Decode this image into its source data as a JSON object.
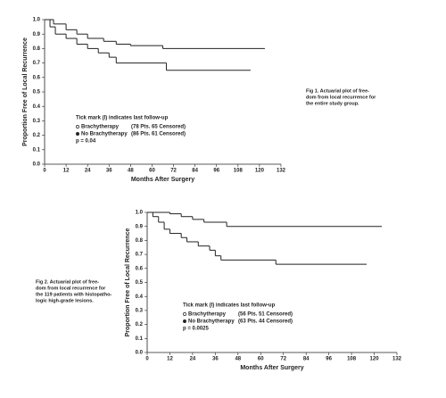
{
  "chart_data": [
    {
      "type": "line",
      "step": true,
      "x_label": "Months After Surgery",
      "y_label": "Proportion Free of Local Recurrence",
      "legend_title": "Tick mark (I) indicates last follow-up",
      "p_value": "p = 0.04",
      "caption": [
        "Fig 1.  Actuarial plot of free-",
        "dom from local recurrence for",
        "the entire study group."
      ],
      "xlim": [
        0,
        132
      ],
      "ylim": [
        0,
        1
      ],
      "xticks": [
        0,
        12,
        24,
        36,
        48,
        60,
        72,
        84,
        96,
        108,
        120,
        132
      ],
      "yticks": [
        {
          "value": 0,
          "label": "0.0"
        },
        0.1,
        0.2,
        0.3,
        0.4,
        0.5,
        0.6,
        0.7,
        0.8,
        0.9,
        {
          "value": 1,
          "label": "1.0"
        }
      ],
      "series": [
        {
          "name": "Brachytherapy",
          "note": "(78 Pts. 65 Censored)",
          "marker": "open",
          "color": "#222",
          "x": [
            0,
            5,
            12,
            18,
            24,
            33,
            40,
            48,
            66,
            123
          ],
          "values": [
            1,
            0.97,
            0.93,
            0.9,
            0.87,
            0.85,
            0.83,
            0.82,
            0.8,
            0.8
          ]
        },
        {
          "name": "No Brachytherapy",
          "note": "(86 Pts. 61 Censored)",
          "marker": "filled",
          "color": "#222",
          "x": [
            0,
            3,
            6,
            12,
            18,
            24,
            30,
            36,
            40,
            68,
            115
          ],
          "values": [
            1,
            0.95,
            0.9,
            0.87,
            0.83,
            0.8,
            0.77,
            0.74,
            0.7,
            0.65,
            0.65
          ]
        }
      ]
    },
    {
      "type": "line",
      "step": true,
      "x_label": "Months After Surgery",
      "y_label": "Proportion Free of Local Recurrence",
      "legend_title": "Tick mark (I) indicates last follow-up",
      "p_value": "p = 0.0025",
      "caption": [
        "Fig 2.  Actuarial plot of free-",
        "dom from local recurrence for",
        "the 119 patients with histopatho-",
        "logic high-grade lesions."
      ],
      "xlim": [
        0,
        132
      ],
      "ylim": [
        0,
        1
      ],
      "xticks": [
        0,
        12,
        24,
        36,
        48,
        60,
        72,
        84,
        96,
        108,
        120,
        132
      ],
      "yticks": [
        {
          "value": 0,
          "label": "0.0"
        },
        0.1,
        0.2,
        0.3,
        0.4,
        0.5,
        0.6,
        0.7,
        0.8,
        0.9,
        {
          "value": 1,
          "label": "1.0"
        }
      ],
      "series": [
        {
          "name": "Brachytherapy",
          "note": "(56 Pts. 51 Censored)",
          "marker": "open",
          "color": "#222",
          "x": [
            0,
            12,
            18,
            24,
            30,
            42,
            124
          ],
          "values": [
            1,
            0.99,
            0.97,
            0.95,
            0.93,
            0.9,
            0.9
          ]
        },
        {
          "name": "No Brachytherapy",
          "note": "(63 Pts. 44 Censored)",
          "marker": "filled",
          "color": "#222",
          "x": [
            0,
            3,
            6,
            9,
            12,
            18,
            21,
            27,
            33,
            36,
            39,
            68,
            116
          ],
          "values": [
            1,
            0.97,
            0.93,
            0.88,
            0.85,
            0.82,
            0.79,
            0.76,
            0.73,
            0.69,
            0.66,
            0.63,
            0.63
          ]
        }
      ]
    }
  ]
}
